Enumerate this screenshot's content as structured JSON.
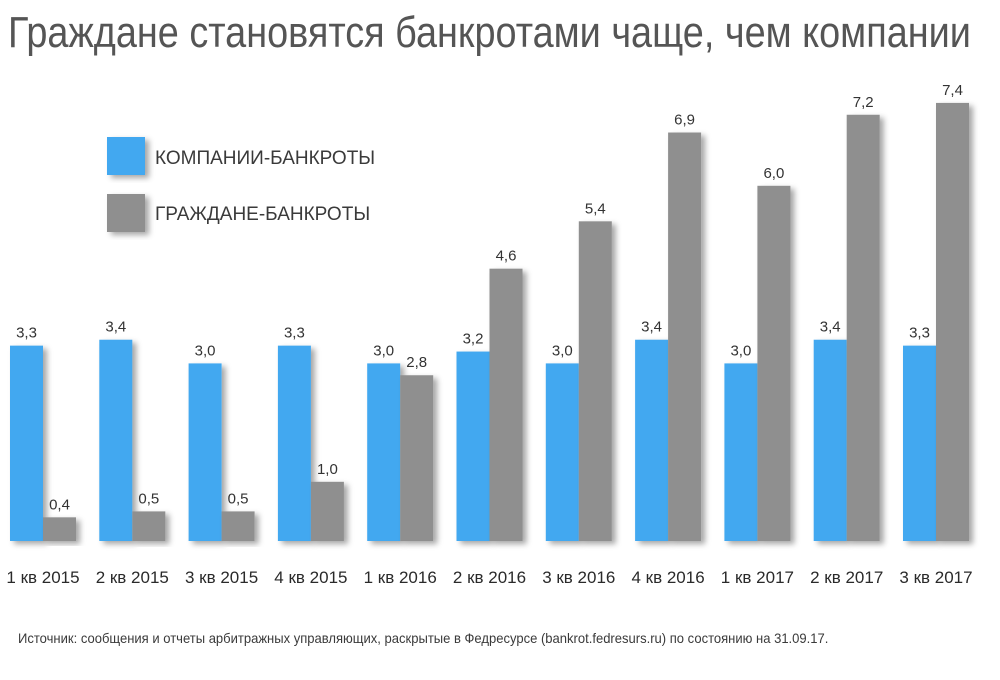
{
  "title": "Граждане становятся банкротами чаще, чем компании",
  "source": "Источник: сообщения и отчеты арбитражных управляющих, раскрытые в Федресурсе (bankrot.fedresurs.ru) по состоянию на 31.09.17.",
  "colors": {
    "companies": "#42a8f0",
    "citizens": "#8f8f8f",
    "text": "#333333"
  },
  "chart_data": {
    "type": "bar",
    "categories": [
      "1 кв 2015",
      "2 кв 2015",
      "3 кв 2015",
      "4 кв 2015",
      "1 кв 2016",
      "2 кв 2016",
      "3 кв 2016",
      "4 кв 2016",
      "1 кв 2017",
      "2 кв 2017",
      "3 кв 2017"
    ],
    "series": [
      {
        "name": "КОМПАНИИ-БАНКРОТЫ",
        "values": [
          3.3,
          3.4,
          3.0,
          3.3,
          3.0,
          3.2,
          3.0,
          3.4,
          3.0,
          3.4,
          3.3
        ]
      },
      {
        "name": "ГРАЖДАНЕ-БАНКРОТЫ",
        "values": [
          0.4,
          0.5,
          0.5,
          1.0,
          2.8,
          4.6,
          5.4,
          6.9,
          6.0,
          7.2,
          7.4
        ]
      }
    ],
    "value_labels": [
      [
        "3,3",
        "3,4",
        "3,0",
        "3,3",
        "3,0",
        "3,2",
        "3,0",
        "3,4",
        "3,0",
        "3,4",
        "3,3"
      ],
      [
        "0,4",
        "0,5",
        "0,5",
        "1,0",
        "2,8",
        "4,6",
        "5,4",
        "6,9",
        "6,0",
        "7,2",
        "7,4"
      ]
    ],
    "ylim": [
      0,
      7.5
    ],
    "legend_position": "top-left",
    "grid": false
  }
}
